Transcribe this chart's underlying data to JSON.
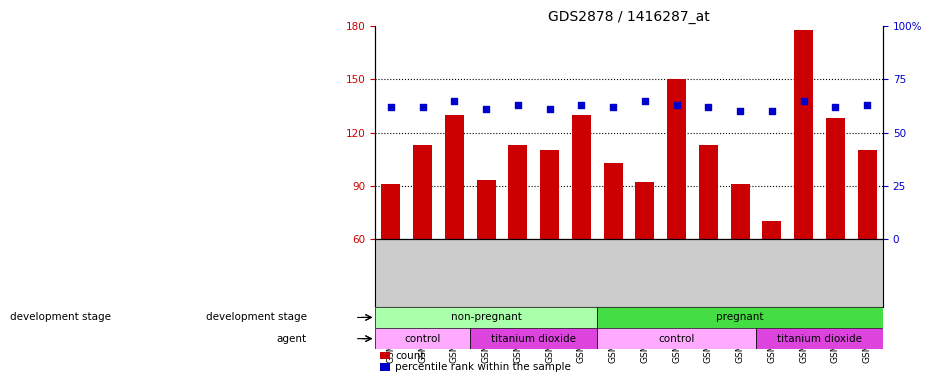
{
  "title": "GDS2878 / 1416287_at",
  "samples": [
    "GSM180976",
    "GSM180985",
    "GSM180989",
    "GSM180978",
    "GSM180979",
    "GSM180980",
    "GSM180981",
    "GSM180975",
    "GSM180977",
    "GSM180984",
    "GSM180986",
    "GSM180990",
    "GSM180982",
    "GSM180983",
    "GSM180987",
    "GSM180988"
  ],
  "counts": [
    91,
    113,
    130,
    93,
    113,
    110,
    130,
    103,
    92,
    150,
    113,
    91,
    70,
    178,
    128,
    110
  ],
  "percentiles": [
    62,
    62,
    65,
    61,
    63,
    61,
    63,
    62,
    65,
    63,
    62,
    60,
    60,
    65,
    62,
    63
  ],
  "ylim_left": [
    60,
    180
  ],
  "ylim_right": [
    0,
    100
  ],
  "yticks_left": [
    60,
    90,
    120,
    150,
    180
  ],
  "yticks_right": [
    0,
    25,
    50,
    75,
    100
  ],
  "bar_color": "#cc0000",
  "dot_color": "#0000cc",
  "groups": {
    "development_stage": [
      {
        "label": "non-pregnant",
        "start": 0,
        "end": 7,
        "color": "#aaffaa"
      },
      {
        "label": "pregnant",
        "start": 7,
        "end": 16,
        "color": "#44dd44"
      }
    ],
    "agent": [
      {
        "label": "control",
        "start": 0,
        "end": 3,
        "color": "#ffaaff"
      },
      {
        "label": "titanium dioxide",
        "start": 3,
        "end": 7,
        "color": "#dd44dd"
      },
      {
        "label": "control",
        "start": 7,
        "end": 12,
        "color": "#ffaaff"
      },
      {
        "label": "titanium dioxide",
        "start": 12,
        "end": 16,
        "color": "#dd44dd"
      }
    ]
  },
  "legend_count_color": "#cc0000",
  "legend_dot_color": "#0000cc",
  "tick_bg_color": "#cccccc"
}
